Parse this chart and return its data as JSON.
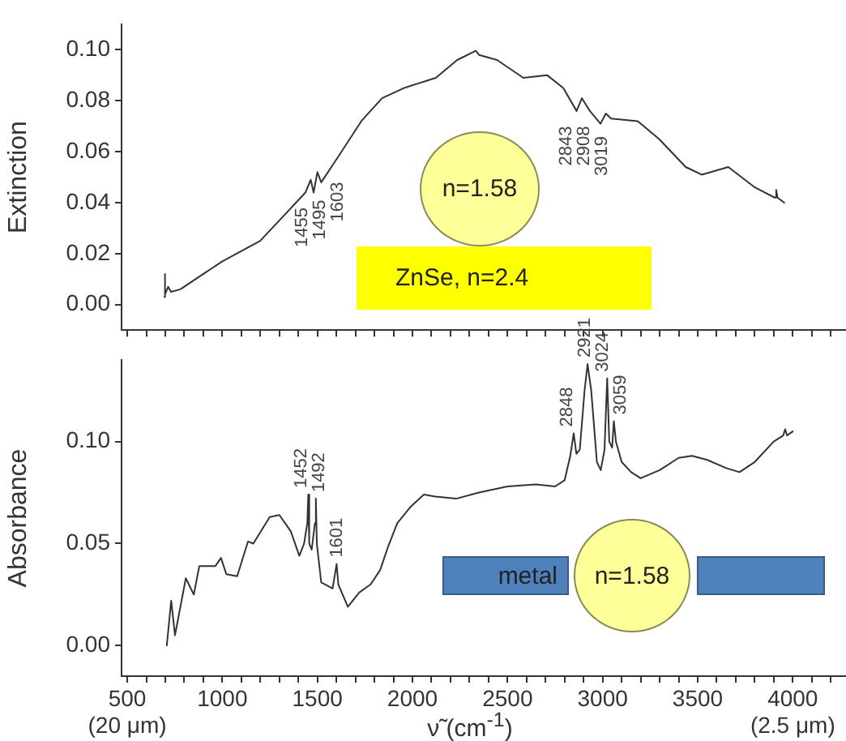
{
  "chart_data": [
    {
      "type": "line",
      "ylabel": "Extinction",
      "color": "#333333",
      "tick_labels": "y",
      "x": [
        695,
        697,
        700,
        715,
        730,
        779,
        1000,
        1199,
        1337,
        1437,
        1465,
        1480,
        1500,
        1520,
        1618,
        1731,
        1840,
        1955,
        2123,
        2235,
        2333,
        2350,
        2445,
        2583,
        2709,
        2793,
        2863,
        2891,
        2933,
        2989,
        3017,
        3045,
        3185,
        3297,
        3437,
        3521,
        3661,
        3801,
        3905,
        3913,
        3920,
        3955
      ],
      "values": [
        0.003,
        0.012,
        0.004,
        0.007,
        0.005,
        0.006,
        0.017,
        0.025,
        0.036,
        0.044,
        0.049,
        0.044,
        0.052,
        0.048,
        0.059,
        0.072,
        0.081,
        0.085,
        0.089,
        0.096,
        0.0996,
        0.098,
        0.096,
        0.089,
        0.09,
        0.085,
        0.076,
        0.081,
        0.076,
        0.071,
        0.075,
        0.073,
        0.072,
        0.065,
        0.054,
        0.051,
        0.054,
        0.046,
        0.042,
        0.045,
        0.042,
        0.04
      ],
      "xlim": [
        470,
        4280
      ],
      "ylim": [
        -0.01,
        0.11
      ],
      "xticks": [
        500,
        {
          "value": 600,
          "label": null
        },
        {
          "value": 700,
          "label": null
        },
        {
          "value": 800,
          "label": null
        },
        {
          "value": 900,
          "label": null
        },
        1000,
        {
          "value": 1100,
          "label": null
        },
        {
          "value": 1200,
          "label": null
        },
        {
          "value": 1300,
          "label": null
        },
        {
          "value": 1400,
          "label": null
        },
        1500,
        {
          "value": 1600,
          "label": null
        },
        {
          "value": 1700,
          "label": null
        },
        {
          "value": 1800,
          "label": null
        },
        {
          "value": 1900,
          "label": null
        },
        2000,
        {
          "value": 2100,
          "label": null
        },
        {
          "value": 2200,
          "label": null
        },
        {
          "value": 2300,
          "label": null
        },
        {
          "value": 2400,
          "label": null
        },
        2500,
        {
          "value": 2600,
          "label": null
        },
        {
          "value": 2700,
          "label": null
        },
        {
          "value": 2800,
          "label": null
        },
        {
          "value": 2900,
          "label": null
        },
        3000,
        {
          "value": 3100,
          "label": null
        },
        {
          "value": 3200,
          "label": null
        },
        {
          "value": 3300,
          "label": null
        },
        {
          "value": 3400,
          "label": null
        },
        3500,
        {
          "value": 3600,
          "label": null
        },
        {
          "value": 3700,
          "label": null
        },
        {
          "value": 3800,
          "label": null
        },
        {
          "value": 3900,
          "label": null
        },
        4000,
        {
          "value": 4100,
          "label": null
        },
        {
          "value": 4200,
          "label": null
        }
      ],
      "yticks": [
        {
          "value": 0,
          "label": "0.00"
        },
        {
          "value": 0.02,
          "label": "0.02"
        },
        {
          "value": 0.04,
          "label": "0.04"
        },
        {
          "value": 0.06,
          "label": "0.06"
        },
        {
          "value": 0.08,
          "label": "0.08"
        },
        {
          "value": 0.1,
          "label": "0.10"
        }
      ],
      "annotations": [
        {
          "text": "1455",
          "x": 1455,
          "y": 0.047
        },
        {
          "text": "1495",
          "x": 1495,
          "y": 0.05
        },
        {
          "text": "1603",
          "x": 1603,
          "y": 0.057
        },
        {
          "text": "2843",
          "x": 2843,
          "y": 0.079
        },
        {
          "text": "2908",
          "x": 2908,
          "y": 0.079
        },
        {
          "text": "3019",
          "x": 3017,
          "y": 0.075
        },
        "n=1.58",
        "ZnSe, n=2.4"
      ]
    },
    {
      "type": "line",
      "ylabel": "Absorbance",
      "xlabel": "ν̃ (cm$^{-1}$)",
      "color": "#333333",
      "x": [
        708,
        731,
        751,
        808,
        850,
        879,
        964,
        993,
        1021,
        1078,
        1135,
        1163,
        1249,
        1300,
        1360,
        1405,
        1430,
        1447,
        1452,
        1457,
        1470,
        1487,
        1492,
        1497,
        1520,
        1580,
        1601,
        1610,
        1660,
        1720,
        1780,
        1830,
        1870,
        1920,
        1990,
        2060,
        2120,
        2230,
        2350,
        2500,
        2650,
        2750,
        2800,
        2830,
        2848,
        2862,
        2880,
        2905,
        2921,
        2940,
        2970,
        2990,
        3010,
        3024,
        3035,
        3050,
        3059,
        3070,
        3100,
        3150,
        3200,
        3300,
        3400,
        3470,
        3550,
        3650,
        3720,
        3800,
        3900,
        3950,
        3960,
        3970,
        4000
      ],
      "values": [
        0.0,
        0.022,
        0.005,
        0.033,
        0.025,
        0.039,
        0.039,
        0.043,
        0.035,
        0.034,
        0.051,
        0.05,
        0.063,
        0.064,
        0.056,
        0.044,
        0.05,
        0.06,
        0.074,
        0.05,
        0.047,
        0.06,
        0.072,
        0.05,
        0.031,
        0.028,
        0.04,
        0.03,
        0.019,
        0.026,
        0.03,
        0.037,
        0.048,
        0.06,
        0.068,
        0.074,
        0.073,
        0.072,
        0.075,
        0.078,
        0.079,
        0.078,
        0.081,
        0.093,
        0.104,
        0.094,
        0.096,
        0.125,
        0.138,
        0.125,
        0.09,
        0.086,
        0.096,
        0.131,
        0.1,
        0.097,
        0.11,
        0.1,
        0.09,
        0.085,
        0.082,
        0.086,
        0.092,
        0.093,
        0.091,
        0.087,
        0.085,
        0.09,
        0.1,
        0.103,
        0.106,
        0.103,
        0.105
      ],
      "xlim": [
        470,
        4280
      ],
      "ylim": [
        -0.015,
        0.14
      ],
      "xticks": [
        {
          "value": 500,
          "label": "500\n(20 μm)"
        },
        {
          "value": 600,
          "label": null
        },
        {
          "value": 700,
          "label": null
        },
        {
          "value": 800,
          "label": null
        },
        {
          "value": 900,
          "label": null
        },
        1000,
        {
          "value": 1100,
          "label": null
        },
        {
          "value": 1200,
          "label": null
        },
        {
          "value": 1300,
          "label": null
        },
        {
          "value": 1400,
          "label": null
        },
        1500,
        {
          "value": 1600,
          "label": null
        },
        {
          "value": 1700,
          "label": null
        },
        {
          "value": 1800,
          "label": null
        },
        {
          "value": 1900,
          "label": null
        },
        2000,
        {
          "value": 2100,
          "label": null
        },
        {
          "value": 2200,
          "label": null
        },
        {
          "value": 2300,
          "label": null
        },
        {
          "value": 2400,
          "label": null
        },
        2500,
        {
          "value": 2600,
          "label": null
        },
        {
          "value": 2700,
          "label": null
        },
        {
          "value": 2800,
          "label": null
        },
        {
          "value": 2900,
          "label": null
        },
        3000,
        {
          "value": 3100,
          "label": null
        },
        {
          "value": 3200,
          "label": null
        },
        {
          "value": 3300,
          "label": null
        },
        {
          "value": 3400,
          "label": null
        },
        3500,
        {
          "value": 3600,
          "label": null
        },
        {
          "value": 3700,
          "label": null
        },
        {
          "value": 3800,
          "label": null
        },
        {
          "value": 3900,
          "label": null
        },
        {
          "value": 4000,
          "label": "4000\n(2.5 μm)"
        },
        {
          "value": 4100,
          "label": null
        },
        {
          "value": 4200,
          "label": null
        }
      ],
      "yticks": [
        {
          "value": 0,
          "label": "0.00"
        },
        {
          "value": 0.05,
          "label": "0.05"
        },
        {
          "value": 0.1,
          "label": "0.10"
        }
      ],
      "annotations": [
        {
          "text": "1452",
          "x": 1452,
          "y": 0.074
        },
        {
          "text": "1492",
          "x": 1492,
          "y": 0.072
        },
        {
          "text": "1601",
          "x": 1601,
          "y": 0.04
        },
        {
          "text": "2848",
          "x": 2848,
          "y": 0.104
        },
        {
          "text": "2921",
          "x": 2921,
          "y": 0.138
        },
        {
          "text": "3024",
          "x": 3024,
          "y": 0.131
        },
        {
          "text": "3059",
          "x": 3059,
          "y": 0.11
        },
        "metal",
        "n=1.58"
      ]
    }
  ]
}
